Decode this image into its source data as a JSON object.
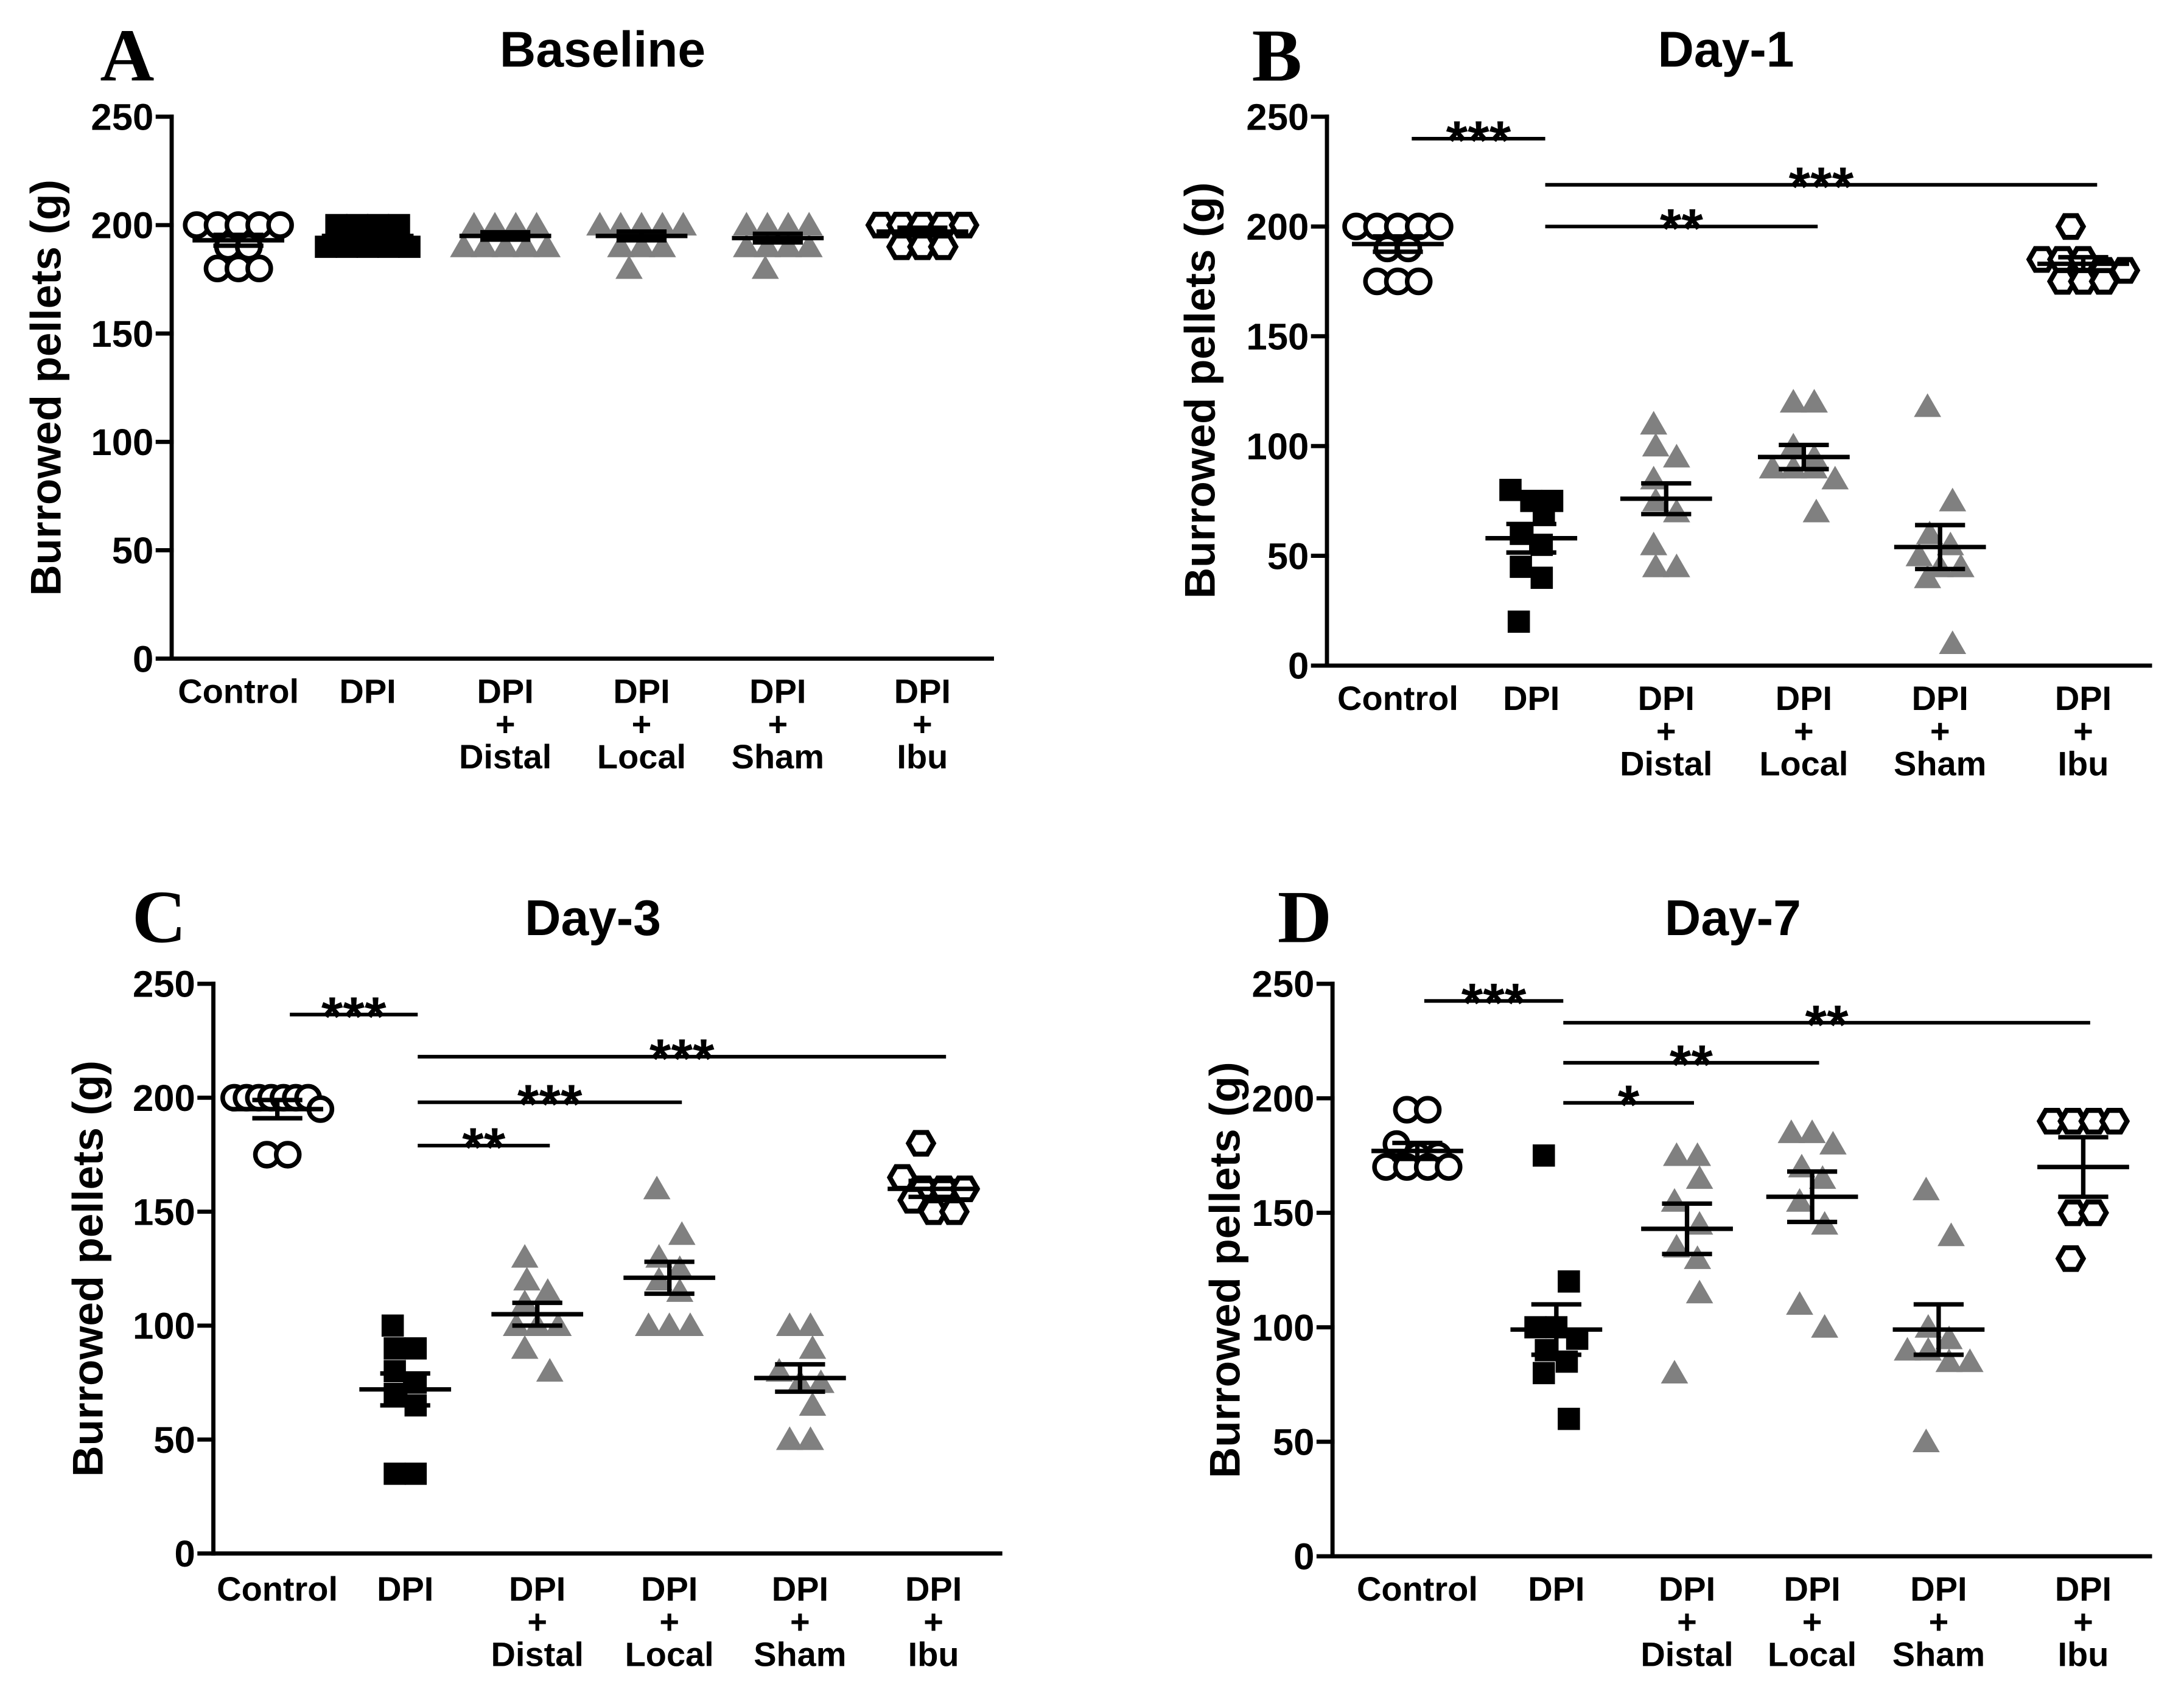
{
  "chart_data": [
    {
      "panel": "A",
      "type": "scatter",
      "title": "Baseline",
      "xlabel": "",
      "ylabel": "Burrowed pellets (g)",
      "ylim": [
        0,
        250
      ],
      "yticks": [
        0,
        50,
        100,
        150,
        200,
        250
      ],
      "groups": [
        {
          "label_lines": [
            "Control"
          ],
          "marker": "open-circle",
          "color": "#000000",
          "values": [
            200,
            200,
            200,
            200,
            200,
            190,
            190,
            180,
            180,
            180
          ],
          "mean": 193,
          "sem": 2.5
        },
        {
          "label_lines": [
            "DPI"
          ],
          "marker": "filled-square",
          "color": "#000000",
          "values": [
            200,
            200,
            200,
            200,
            190,
            190,
            190,
            190,
            190
          ],
          "mean": 195,
          "sem": 1.7
        },
        {
          "label_lines": [
            "DPI",
            "+",
            "Distal"
          ],
          "marker": "filled-triangle",
          "color": "#808080",
          "values": [
            200,
            200,
            200,
            200,
            190,
            190,
            190,
            190,
            190
          ],
          "mean": 195,
          "sem": 1.7
        },
        {
          "label_lines": [
            "DPI",
            "+",
            "Local"
          ],
          "marker": "filled-triangle",
          "color": "#808080",
          "values": [
            200,
            200,
            200,
            200,
            200,
            190,
            190,
            190,
            180
          ],
          "mean": 195,
          "sem": 2
        },
        {
          "label_lines": [
            "DPI",
            "+",
            "Sham"
          ],
          "marker": "filled-triangle",
          "color": "#808080",
          "values": [
            200,
            200,
            200,
            200,
            190,
            190,
            190,
            190,
            180
          ],
          "mean": 194,
          "sem": 2
        },
        {
          "label_lines": [
            "DPI",
            "+",
            "Ibu"
          ],
          "marker": "open-hexagon",
          "color": "#000000",
          "values": [
            200,
            200,
            200,
            200,
            200,
            190,
            190,
            190
          ],
          "mean": 197,
          "sem": 1.8
        }
      ],
      "comparisons": []
    },
    {
      "panel": "B",
      "type": "scatter",
      "title": "Day-1",
      "xlabel": "",
      "ylabel": "Burrowed pellets (g)",
      "ylim": [
        0,
        250
      ],
      "yticks": [
        0,
        50,
        100,
        150,
        200,
        250
      ],
      "groups": [
        {
          "label_lines": [
            "Control"
          ],
          "marker": "open-circle",
          "color": "#000000",
          "values": [
            200,
            200,
            200,
            200,
            200,
            190,
            190,
            175,
            175,
            175
          ],
          "mean": 192,
          "sem": 3.5
        },
        {
          "label_lines": [
            "DPI"
          ],
          "marker": "filled-square",
          "color": "#000000",
          "values": [
            80,
            75,
            75,
            70,
            60,
            55,
            45,
            40,
            20
          ],
          "mean": 58,
          "sem": 6.5
        },
        {
          "label_lines": [
            "DPI",
            "+",
            "Distal"
          ],
          "marker": "filled-triangle",
          "color": "#808080",
          "values": [
            110,
            100,
            95,
            85,
            75,
            70,
            55,
            45,
            45
          ],
          "mean": 76,
          "sem": 7
        },
        {
          "label_lines": [
            "DPI",
            "+",
            "Local"
          ],
          "marker": "filled-triangle",
          "color": "#808080",
          "values": [
            120,
            120,
            100,
            95,
            90,
            90,
            90,
            85,
            70
          ],
          "mean": 95,
          "sem": 5.5
        },
        {
          "label_lines": [
            "DPI",
            "+",
            "Sham"
          ],
          "marker": "filled-triangle",
          "color": "#808080",
          "values": [
            118,
            75,
            60,
            55,
            50,
            45,
            45,
            40,
            10
          ],
          "mean": 54,
          "sem": 10
        },
        {
          "label_lines": [
            "DPI",
            "+",
            "Ibu"
          ],
          "marker": "open-hexagon",
          "color": "#000000",
          "values": [
            200,
            185,
            185,
            185,
            180,
            180,
            175,
            175,
            175
          ],
          "mean": 183,
          "sem": 3
        }
      ],
      "comparisons": [
        {
          "from": 0,
          "to": 1,
          "label": "***"
        },
        {
          "from": 1,
          "to": 5,
          "label": "***"
        },
        {
          "from": 1,
          "to": 3,
          "label": "**"
        }
      ]
    },
    {
      "panel": "C",
      "type": "scatter",
      "title": "Day-3",
      "xlabel": "",
      "ylabel": "Burrowed pellets (g)",
      "ylim": [
        0,
        250
      ],
      "yticks": [
        0,
        50,
        100,
        150,
        200,
        250
      ],
      "groups": [
        {
          "label_lines": [
            "Control"
          ],
          "marker": "open-circle",
          "color": "#000000",
          "values": [
            200,
            200,
            200,
            200,
            200,
            200,
            200,
            195,
            175,
            175
          ],
          "mean": 195,
          "sem": 4
        },
        {
          "label_lines": [
            "DPI"
          ],
          "marker": "filled-square",
          "color": "#000000",
          "values": [
            100,
            90,
            90,
            80,
            75,
            70,
            65,
            35,
            35
          ],
          "mean": 72,
          "sem": 7
        },
        {
          "label_lines": [
            "DPI",
            "+",
            "Distal"
          ],
          "marker": "filled-triangle",
          "color": "#808080",
          "values": [
            130,
            120,
            115,
            110,
            100,
            100,
            100,
            90,
            80
          ],
          "mean": 105,
          "sem": 5
        },
        {
          "label_lines": [
            "DPI",
            "+",
            "Local"
          ],
          "marker": "filled-triangle",
          "color": "#808080",
          "values": [
            160,
            140,
            130,
            125,
            120,
            115,
            100,
            100,
            100
          ],
          "mean": 121,
          "sem": 7
        },
        {
          "label_lines": [
            "DPI",
            "+",
            "Sham"
          ],
          "marker": "filled-triangle",
          "color": "#808080",
          "values": [
            100,
            100,
            90,
            80,
            75,
            75,
            65,
            50,
            50
          ],
          "mean": 77,
          "sem": 6
        },
        {
          "label_lines": [
            "DPI",
            "+",
            "Ibu"
          ],
          "marker": "open-hexagon",
          "color": "#000000",
          "values": [
            180,
            165,
            160,
            160,
            160,
            155,
            150,
            150
          ],
          "mean": 160,
          "sem": 3.5
        }
      ],
      "comparisons": [
        {
          "from": 0,
          "to": 1,
          "label": "***"
        },
        {
          "from": 1,
          "to": 5,
          "label": "***"
        },
        {
          "from": 1,
          "to": 3,
          "label": "***"
        },
        {
          "from": 1,
          "to": 2,
          "label": "**"
        }
      ]
    },
    {
      "panel": "D",
      "type": "scatter",
      "title": "Day-7",
      "xlabel": "",
      "ylabel": "Burrowed pellets (g)",
      "ylim": [
        0,
        250
      ],
      "yticks": [
        0,
        50,
        100,
        150,
        200,
        250
      ],
      "groups": [
        {
          "label_lines": [
            "Control"
          ],
          "marker": "open-circle",
          "color": "#000000",
          "values": [
            195,
            195,
            180,
            175,
            175,
            170,
            170,
            170,
            170
          ],
          "mean": 177,
          "sem": 3.5
        },
        {
          "label_lines": [
            "DPI"
          ],
          "marker": "filled-square",
          "color": "#000000",
          "values": [
            175,
            120,
            100,
            100,
            95,
            90,
            85,
            80,
            60
          ],
          "mean": 99,
          "sem": 11
        },
        {
          "label_lines": [
            "DPI",
            "+",
            "Distal"
          ],
          "marker": "filled-triangle",
          "color": "#808080",
          "values": [
            175,
            175,
            165,
            155,
            145,
            135,
            130,
            115,
            80
          ],
          "mean": 143,
          "sem": 11
        },
        {
          "label_lines": [
            "DPI",
            "+",
            "Local"
          ],
          "marker": "filled-triangle",
          "color": "#808080",
          "values": [
            185,
            185,
            180,
            170,
            165,
            155,
            145,
            110,
            100
          ],
          "mean": 157,
          "sem": 11
        },
        {
          "label_lines": [
            "DPI",
            "+",
            "Sham"
          ],
          "marker": "filled-triangle",
          "color": "#808080",
          "values": [
            160,
            140,
            100,
            95,
            90,
            90,
            85,
            85,
            50
          ],
          "mean": 99,
          "sem": 11
        },
        {
          "label_lines": [
            "DPI",
            "+",
            "Ibu"
          ],
          "marker": "open-hexagon",
          "color": "#000000",
          "values": [
            190,
            190,
            190,
            190,
            150,
            150,
            130
          ],
          "mean": 170,
          "sem": 13
        }
      ],
      "comparisons": [
        {
          "from": 0,
          "to": 1,
          "label": "***"
        },
        {
          "from": 1,
          "to": 5,
          "label": "**"
        },
        {
          "from": 1,
          "to": 3,
          "label": "**"
        },
        {
          "from": 1,
          "to": 2,
          "label": "*"
        }
      ]
    }
  ]
}
